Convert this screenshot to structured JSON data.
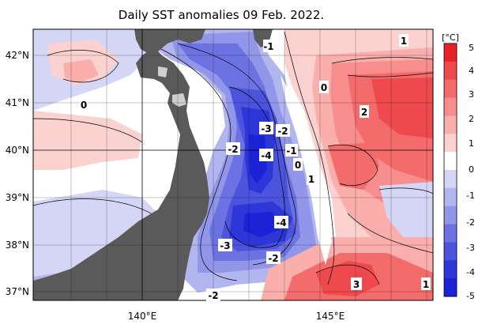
{
  "title": "Daily SST anomalies 09 Feb. 2022.",
  "map": {
    "lat_ticks": [
      "42°N",
      "41°N",
      "40°N",
      "39°N",
      "38°N",
      "37°N"
    ],
    "lon_ticks": [
      "140°E",
      "145°E"
    ],
    "contour_labels": [
      "-1",
      "1",
      "0",
      "2",
      "0",
      "-3",
      "-2",
      "-2",
      "-4",
      "-1",
      "0",
      "1",
      "-4",
      "-3",
      "-2",
      "3",
      "1",
      "-2"
    ],
    "land_color": "#5a5a5a"
  },
  "colorbar": {
    "unit": "[°C]",
    "ticks": [
      "5",
      "4",
      "3",
      "2",
      "1",
      "0",
      "-1",
      "-2",
      "-3",
      "-4",
      "-5"
    ],
    "colors": [
      "#e8202a",
      "#ee4a4e",
      "#f46b6c",
      "#f78e8d",
      "#faafad",
      "#fcd2d0",
      "#ffffff",
      "#d4d6f6",
      "#b2b6ee",
      "#9196e8",
      "#6c72e2",
      "#4c54de",
      "#2d37d8",
      "#1c22d6"
    ]
  }
}
